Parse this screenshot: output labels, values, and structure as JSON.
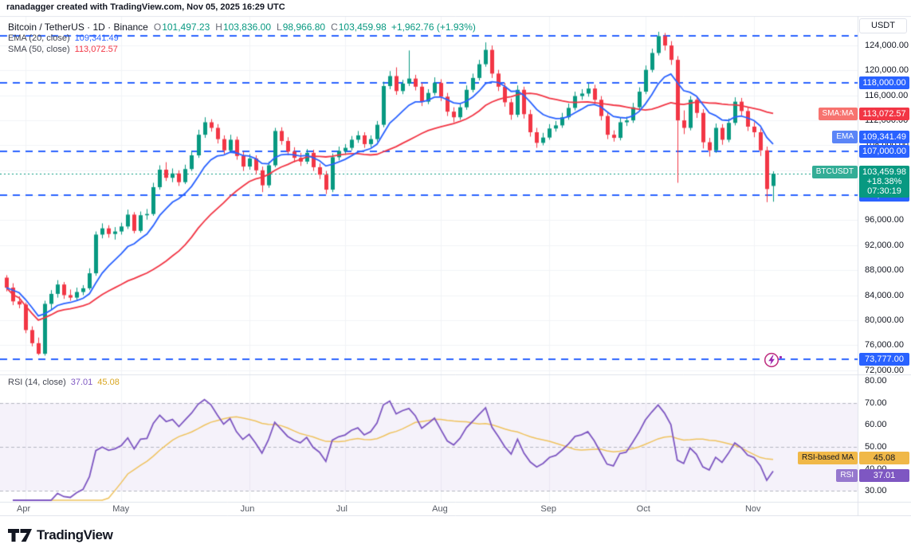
{
  "meta": {
    "attribution": "ranadagger created with TradingView.com, Nov 05, 2025 16:29 UTC"
  },
  "legend": {
    "title": "Bitcoin / TetherUS · 1D · Binance",
    "ohlc": {
      "o_label": "O",
      "o": "101,497.23",
      "h_label": "H",
      "h": "103,836.00",
      "l_label": "L",
      "l": "98,966.80",
      "c_label": "C",
      "c": "103,459.98",
      "change": "+1,962.76 (+1.93%)"
    },
    "ema": {
      "label": "EMA (20, close)",
      "value": "109,341.49"
    },
    "sma": {
      "label": "SMA (50, close)",
      "value": "113,072.57"
    }
  },
  "rsi_legend": {
    "label": "RSI (14, close)",
    "rsi": "37.01",
    "ma": "45.08"
  },
  "axis": {
    "unit": "USDT",
    "price_ticks": [
      124000,
      120000,
      116000,
      112000,
      108000,
      104000,
      100000,
      96000,
      92000,
      88000,
      84000,
      80000,
      76000,
      72000
    ],
    "rsi_ticks": [
      80,
      70,
      60,
      50,
      40,
      30
    ]
  },
  "price_badges": [
    {
      "tab": "SMA:MA",
      "text": "113,072.57",
      "value": 113072.57,
      "bg": "#F23645",
      "tab_bg": "#F7736F",
      "fg": "#FFFFFF"
    },
    {
      "tab": "EMA",
      "text": "109,341.49",
      "value": 109341.49,
      "bg": "#2962FF",
      "tab_bg": "#5B85F7",
      "fg": "#FFFFFF"
    },
    {
      "tab": "BTCUSDT",
      "lines": [
        "103,459.98",
        "+18.38%",
        "07:30:19"
      ],
      "value": 103459.98,
      "bg": "#089981",
      "tab_bg": "#33AD96",
      "fg": "#FFFFFF"
    }
  ],
  "rsi_badges": [
    {
      "tab": "RSI-based MA",
      "text": "45.08",
      "value": 45.08,
      "bg": "#F0B848",
      "tab_bg": "#F0B848",
      "fg": "#131722"
    },
    {
      "tab": "RSI",
      "text": "37.01",
      "value": 37.01,
      "bg": "#7E57C2",
      "tab_bg": "#9678CE",
      "fg": "#FFFFFF"
    }
  ],
  "colors": {
    "up": "#089981",
    "down": "#F23645",
    "ema": "#2962FF",
    "sma": "#F23645",
    "level": "#2962FF",
    "current": "#089981",
    "rsi": "#7E57C2",
    "rsi_ma": "#F0C35F",
    "band_fill": "rgba(126,87,194,0.08)",
    "guide": "#B5B8C2",
    "grid": "#F2F3F7",
    "separator": "#E0E3EB"
  },
  "chart_data": {
    "type": "candlestick",
    "symbol": "BTCUSDT",
    "exchange": "Binance",
    "timeframe": "1D",
    "price_axis": {
      "min": 71300,
      "max": 128100,
      "tick_step": 4000
    },
    "rsi_axis": {
      "min": 25,
      "max": 83,
      "guides": [
        70,
        50,
        30
      ],
      "band": [
        30,
        70
      ]
    },
    "months": [
      {
        "label": "Apr",
        "index": 3
      },
      {
        "label": "May",
        "index": 18
      },
      {
        "label": "Jun",
        "index": 38
      },
      {
        "label": "Jul",
        "index": 53
      },
      {
        "label": "Aug",
        "index": 68
      },
      {
        "label": "Sep",
        "index": 85
      },
      {
        "label": "Oct",
        "index": 100
      },
      {
        "label": "Nov",
        "index": 117
      }
    ],
    "levels": [
      {
        "value": 125600,
        "label": null
      },
      {
        "value": 118000,
        "label": "118,000.00"
      },
      {
        "value": 107000,
        "label": "107,000.00"
      },
      {
        "value": 100000,
        "label": "100,000.00"
      },
      {
        "value": 73777,
        "label": "73,777.00"
      }
    ],
    "current_price": 103459.98,
    "indicators": {
      "ema": {
        "period": 20,
        "source": "close",
        "value": 109341.49
      },
      "sma": {
        "period": 50,
        "source": "close",
        "value": 113072.57
      },
      "rsi": {
        "period": 14,
        "source": "close",
        "value": 37.01
      },
      "rsi_ma": {
        "value": 45.08
      }
    },
    "last_candle_ohlc": {
      "o": 101497.23,
      "h": 103836.0,
      "l": 98966.8,
      "c": 103459.98,
      "change": 1962.76,
      "change_pct": 1.93
    },
    "candles": [
      [
        86800,
        87200,
        84600,
        85200
      ],
      [
        85200,
        85900,
        82400,
        83000
      ],
      [
        83000,
        83800,
        81900,
        82500
      ],
      [
        82500,
        82800,
        77900,
        78400
      ],
      [
        78400,
        79000,
        75800,
        76300
      ],
      [
        76300,
        77200,
        74400,
        74600
      ],
      [
        74600,
        83100,
        74300,
        82600
      ],
      [
        82600,
        84800,
        81700,
        84200
      ],
      [
        84200,
        86400,
        83600,
        85700
      ],
      [
        85700,
        86100,
        83400,
        84000
      ],
      [
        84000,
        84900,
        83100,
        83600
      ],
      [
        83600,
        85200,
        83200,
        84500
      ],
      [
        84500,
        85600,
        84000,
        85100
      ],
      [
        85100,
        88300,
        84800,
        87500
      ],
      [
        87500,
        94200,
        87100,
        93700
      ],
      [
        93700,
        95500,
        93100,
        94700
      ],
      [
        94700,
        95200,
        93200,
        93800
      ],
      [
        93800,
        94900,
        92900,
        94200
      ],
      [
        94200,
        95600,
        93700,
        95000
      ],
      [
        95000,
        97700,
        94600,
        96900
      ],
      [
        96900,
        97300,
        93900,
        94300
      ],
      [
        94300,
        97400,
        94000,
        96800
      ],
      [
        96800,
        97800,
        96100,
        97000
      ],
      [
        97000,
        102000,
        96700,
        101300
      ],
      [
        101300,
        104800,
        100900,
        104100
      ],
      [
        104100,
        105300,
        102300,
        102800
      ],
      [
        102800,
        104300,
        102100,
        103500
      ],
      [
        103500,
        104000,
        101500,
        102100
      ],
      [
        102100,
        104900,
        101800,
        104200
      ],
      [
        104200,
        107100,
        103900,
        106400
      ],
      [
        106400,
        110500,
        106000,
        109700
      ],
      [
        109700,
        112500,
        109200,
        111700
      ],
      [
        111700,
        112200,
        110200,
        110800
      ],
      [
        110800,
        111400,
        108300,
        109000
      ],
      [
        109000,
        109600,
        106600,
        107200
      ],
      [
        107200,
        109700,
        106900,
        108900
      ],
      [
        108900,
        109400,
        105700,
        106300
      ],
      [
        106300,
        107000,
        103900,
        104600
      ],
      [
        104600,
        106600,
        104100,
        105900
      ],
      [
        105900,
        106400,
        103300,
        104000
      ],
      [
        104000,
        104600,
        100500,
        101600
      ],
      [
        101600,
        105400,
        101200,
        104800
      ],
      [
        104800,
        110800,
        104500,
        110300
      ],
      [
        110300,
        110900,
        108100,
        108700
      ],
      [
        108700,
        109300,
        106400,
        107000
      ],
      [
        107000,
        107700,
        105300,
        106000
      ],
      [
        106000,
        106800,
        104700,
        105400
      ],
      [
        105400,
        107400,
        105000,
        106800
      ],
      [
        106800,
        107300,
        103900,
        104500
      ],
      [
        104500,
        105100,
        102600,
        103300
      ],
      [
        103300,
        103900,
        100200,
        100900
      ],
      [
        100900,
        106700,
        100500,
        106100
      ],
      [
        106100,
        107800,
        105600,
        107100
      ],
      [
        107100,
        108200,
        106500,
        107600
      ],
      [
        107600,
        109500,
        107200,
        108900
      ],
      [
        108900,
        110300,
        108400,
        109600
      ],
      [
        109600,
        110100,
        107600,
        108200
      ],
      [
        108200,
        109600,
        107700,
        109000
      ],
      [
        109000,
        111900,
        108600,
        111300
      ],
      [
        111300,
        118200,
        110900,
        117500
      ],
      [
        117500,
        119900,
        117000,
        119100
      ],
      [
        119100,
        120500,
        116100,
        116700
      ],
      [
        116700,
        118500,
        116200,
        117900
      ],
      [
        117900,
        123200,
        117500,
        118700
      ],
      [
        118700,
        119300,
        116800,
        117400
      ],
      [
        117400,
        118000,
        114300,
        115000
      ],
      [
        115000,
        117000,
        114600,
        116400
      ],
      [
        116400,
        118900,
        116000,
        118000
      ],
      [
        118000,
        118600,
        115100,
        115800
      ],
      [
        115800,
        116400,
        112700,
        113400
      ],
      [
        113400,
        114100,
        111700,
        112500
      ],
      [
        112500,
        114800,
        112100,
        114100
      ],
      [
        114100,
        117600,
        113700,
        116900
      ],
      [
        116900,
        119500,
        116500,
        118800
      ],
      [
        118800,
        121700,
        118400,
        121000
      ],
      [
        121000,
        124500,
        120600,
        123300
      ],
      [
        123300,
        124000,
        118800,
        119500
      ],
      [
        119500,
        120100,
        116700,
        117400
      ],
      [
        117400,
        118000,
        114200,
        114900
      ],
      [
        114900,
        115500,
        112100,
        112900
      ],
      [
        112900,
        117600,
        112500,
        116900
      ],
      [
        116900,
        117400,
        112300,
        113000
      ],
      [
        113000,
        113700,
        109400,
        110100
      ],
      [
        110100,
        110800,
        107600,
        108400
      ],
      [
        108400,
        110000,
        108000,
        109250
      ],
      [
        109250,
        111400,
        108900,
        110700
      ],
      [
        110700,
        111900,
        110200,
        111200
      ],
      [
        111200,
        113200,
        110800,
        112500
      ],
      [
        112500,
        114700,
        112100,
        114000
      ],
      [
        114000,
        116600,
        113600,
        115900
      ],
      [
        115900,
        117000,
        115300,
        116300
      ],
      [
        116300,
        117900,
        115800,
        117100
      ],
      [
        117100,
        117700,
        114600,
        115300
      ],
      [
        115300,
        115900,
        112000,
        112700
      ],
      [
        112700,
        113300,
        109000,
        109700
      ],
      [
        109700,
        110400,
        108600,
        109200
      ],
      [
        109200,
        112400,
        108800,
        111700
      ],
      [
        111700,
        112600,
        111100,
        112000
      ],
      [
        112000,
        114800,
        111600,
        114100
      ],
      [
        114100,
        117300,
        113700,
        116600
      ],
      [
        116600,
        120800,
        116200,
        120100
      ],
      [
        120100,
        123500,
        119700,
        122800
      ],
      [
        122800,
        126199,
        122400,
        125500
      ],
      [
        125500,
        126000,
        123200,
        124000
      ],
      [
        124000,
        124700,
        120900,
        121700
      ],
      [
        121700,
        122300,
        102000,
        112000
      ],
      [
        112000,
        113600,
        109800,
        110800
      ],
      [
        110800,
        115900,
        110400,
        115300
      ],
      [
        115300,
        115900,
        112400,
        113200
      ],
      [
        113200,
        113800,
        107500,
        108500
      ],
      [
        108500,
        109200,
        106200,
        107200
      ],
      [
        107200,
        111500,
        106800,
        110800
      ],
      [
        110800,
        111400,
        108100,
        108900
      ],
      [
        108900,
        112300,
        108500,
        111600
      ],
      [
        111600,
        115700,
        111200,
        115000
      ],
      [
        115000,
        115600,
        112800,
        113500
      ],
      [
        113500,
        114200,
        110300,
        111000
      ],
      [
        111000,
        111700,
        109300,
        110100
      ],
      [
        110100,
        110700,
        106300,
        107200
      ],
      [
        107200,
        107800,
        98900,
        101000
      ],
      [
        101497.23,
        103836,
        98966.8,
        103459.98
      ]
    ]
  },
  "logo": {
    "text": "TradingView"
  }
}
